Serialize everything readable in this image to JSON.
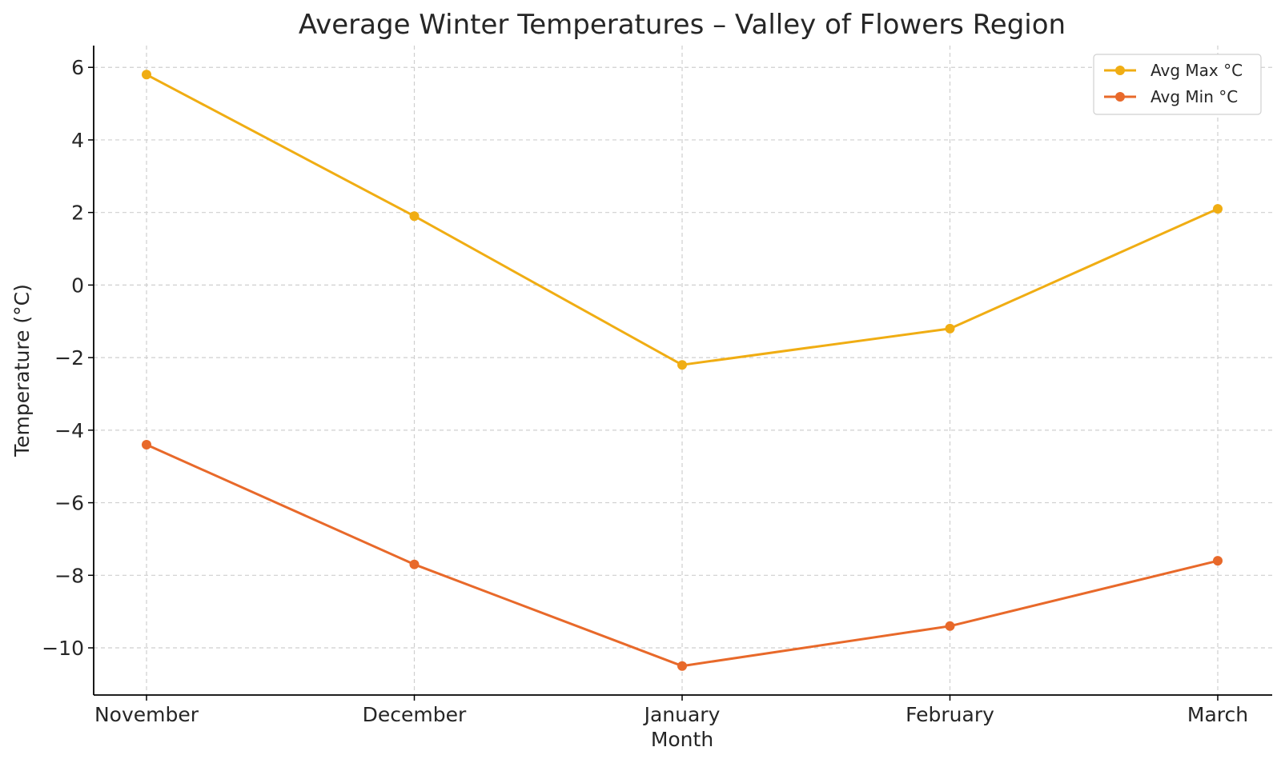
{
  "chart_data": {
    "type": "line",
    "title": "Average Winter Temperatures – Valley of Flowers Region",
    "xlabel": "Month",
    "ylabel": "Temperature (°C)",
    "categories": [
      "November",
      "December",
      "January",
      "February",
      "March"
    ],
    "ylim": [
      -11.3,
      6.6
    ],
    "yticks": [
      6,
      4,
      2,
      0,
      -2,
      -4,
      -6,
      -8,
      -10
    ],
    "ytick_labels": [
      "6",
      "4",
      "2",
      "0",
      "−2",
      "−4",
      "−6",
      "−8",
      "−10"
    ],
    "grid": true,
    "legend_position": "top-right",
    "series": [
      {
        "name": "Avg Max °C",
        "color": "#F0AD13",
        "values": [
          5.8,
          1.9,
          -2.2,
          -1.2,
          2.1
        ]
      },
      {
        "name": "Avg Min °C",
        "color": "#E8692A",
        "values": [
          -4.4,
          -7.7,
          -10.5,
          -9.4,
          -7.6
        ]
      }
    ]
  }
}
